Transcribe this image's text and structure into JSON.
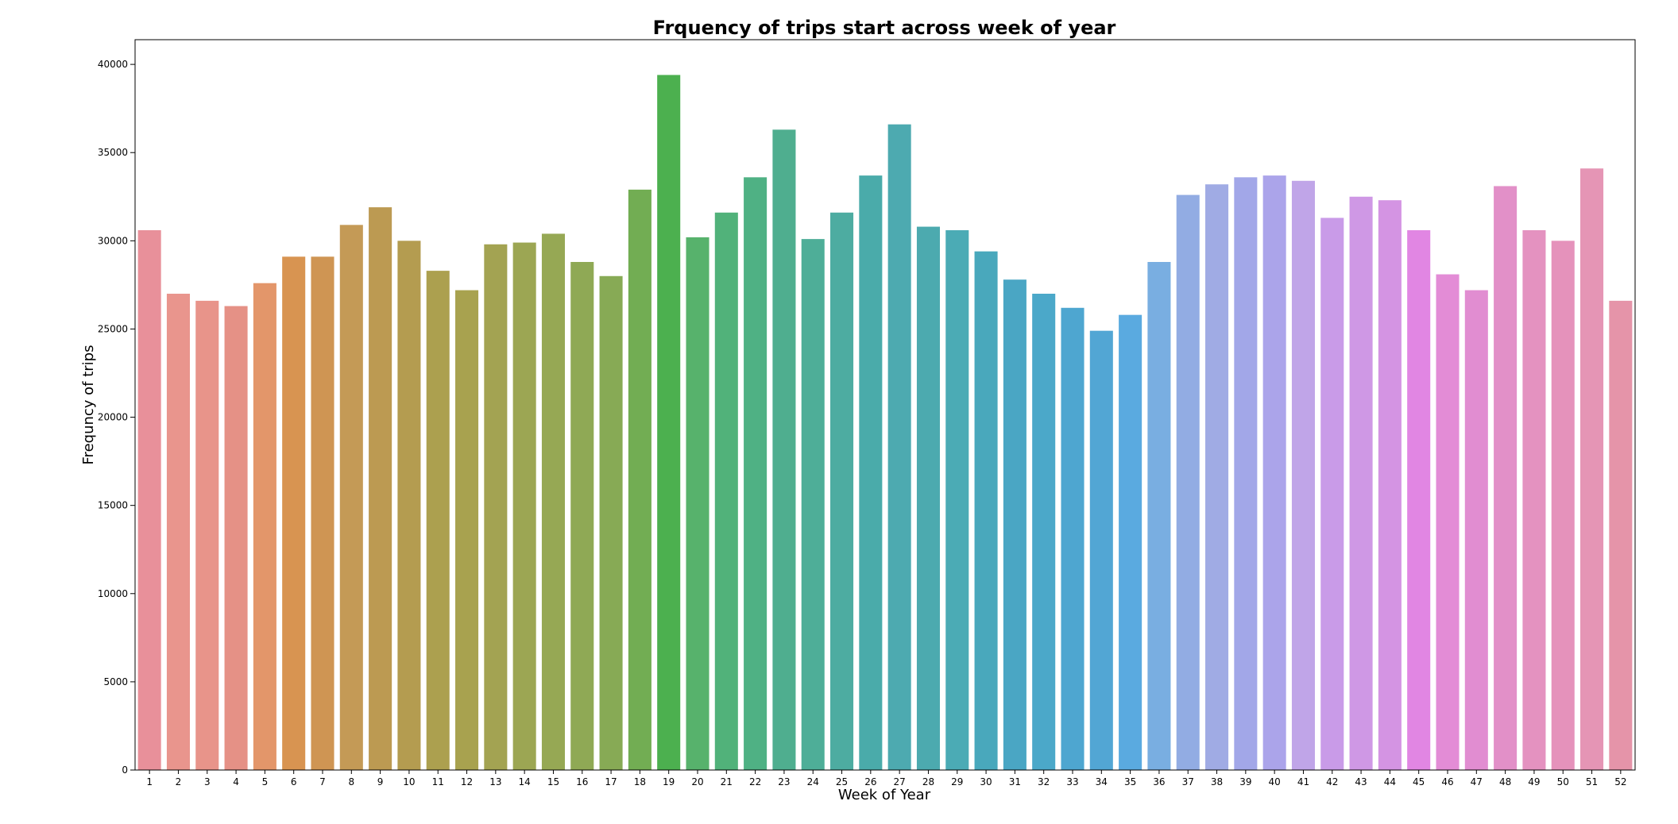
{
  "chart_data": {
    "type": "bar",
    "title": "Frquency of trips start across week of year",
    "xlabel": "Week of Year",
    "ylabel": "Frequncy of trips",
    "ylim": [
      0,
      41400
    ],
    "yticks": [
      0,
      5000,
      10000,
      15000,
      20000,
      25000,
      30000,
      35000,
      40000
    ],
    "grid": false,
    "legend": "none",
    "categories": [
      "1",
      "2",
      "3",
      "4",
      "5",
      "6",
      "7",
      "8",
      "9",
      "10",
      "11",
      "12",
      "13",
      "14",
      "15",
      "16",
      "17",
      "18",
      "19",
      "20",
      "21",
      "22",
      "23",
      "24",
      "25",
      "26",
      "27",
      "28",
      "29",
      "30",
      "31",
      "32",
      "33",
      "34",
      "35",
      "36",
      "37",
      "38",
      "39",
      "40",
      "41",
      "42",
      "43",
      "44",
      "45",
      "46",
      "47",
      "48",
      "49",
      "50",
      "51",
      "52"
    ],
    "values": [
      30600,
      27000,
      26600,
      26300,
      27600,
      29100,
      29100,
      30900,
      31900,
      30000,
      28300,
      27200,
      29800,
      29900,
      30400,
      28800,
      28000,
      32900,
      39400,
      30200,
      31600,
      33600,
      36300,
      30100,
      31600,
      33700,
      36600,
      30800,
      30600,
      29400,
      27800,
      27000,
      26200,
      24900,
      25800,
      28800,
      32600,
      33200,
      33600,
      33700,
      33400,
      31300,
      32500,
      32300,
      30600,
      28100,
      27200,
      33100,
      30600,
      30000,
      34100,
      26600
    ],
    "colors": [
      "#e8909a",
      "#e9958d",
      "#e8948a",
      "#e59186",
      "#e3966a",
      "#d89451",
      "#cf9553",
      "#c49a56",
      "#bc9a52",
      "#b49c50",
      "#aca04f",
      "#a8a24f",
      "#a3a352",
      "#9ca653",
      "#96a854",
      "#8fa955",
      "#87aa55",
      "#72ad53",
      "#4cb04f",
      "#57b26c",
      "#51b27a",
      "#4fb184",
      "#4fae8f",
      "#4eae98",
      "#4daca1",
      "#4aabaa",
      "#4daab0",
      "#4caaaf",
      "#4babb5",
      "#49a8bc",
      "#4aa6c4",
      "#4ba8c9",
      "#4ea6d0",
      "#52a6d4",
      "#5aaae0",
      "#79aee1",
      "#92ace3",
      "#a0abe4",
      "#a2a7e8",
      "#aba4ea",
      "#c0a5e8",
      "#c99be8",
      "#cf98e5",
      "#d494e3",
      "#e186e3",
      "#e38cd6",
      "#e18dd1",
      "#e290c8",
      "#e492c0",
      "#e592bb",
      "#e595b5",
      "#e594a9"
    ]
  }
}
